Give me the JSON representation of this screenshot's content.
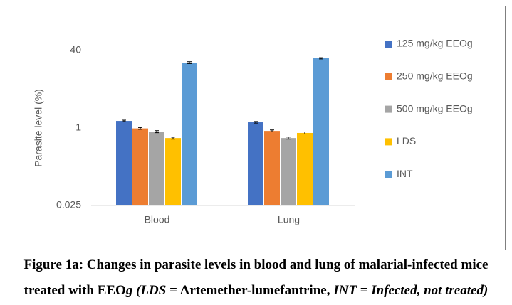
{
  "chart_data": {
    "type": "bar",
    "y_label": "Parasite level  (%)",
    "categories": [
      "Blood",
      "Lung"
    ],
    "series": [
      {
        "name": "125 mg/kg EEOg",
        "color": "#4472c4",
        "values": [
          1.4,
          1.31
        ],
        "errors": [
          0.05,
          0.05
        ]
      },
      {
        "name": "250 mg/kg EEOg",
        "color": "#ed7d31",
        "values": [
          0.98,
          0.87
        ],
        "errors": [
          0.04,
          0.04
        ]
      },
      {
        "name": "500 mg/kg EEOg",
        "color": "#a5a5a5",
        "values": [
          0.84,
          0.62
        ],
        "errors": [
          0.04,
          0.03
        ]
      },
      {
        "name": "LDS",
        "color": "#ffc000",
        "values": [
          0.62,
          0.79
        ],
        "errors": [
          0.03,
          0.04
        ]
      },
      {
        "name": "INT",
        "color": "#5b9bd5",
        "values": [
          22.5,
          27.6
        ],
        "errors": [
          1,
          0.8
        ]
      }
    ],
    "ylim": [
      0.025,
      40
    ],
    "yticks": [
      0.025,
      1,
      40
    ],
    "log_scale": true,
    "grid": false,
    "legend": "right"
  },
  "caption": [
    {
      "text": "Figure 1a: Changes in parasite levels in blood and lung of malarial-infected mice",
      "italic": false
    },
    {
      "text": "treated with EEO",
      "italic": false
    },
    {
      "text": "g (LDS",
      "italic": true
    },
    {
      "text": " = Artemether-lumefantrine, ",
      "italic": false
    },
    {
      "text": "INT = Infected, not treated)",
      "italic": true
    }
  ]
}
